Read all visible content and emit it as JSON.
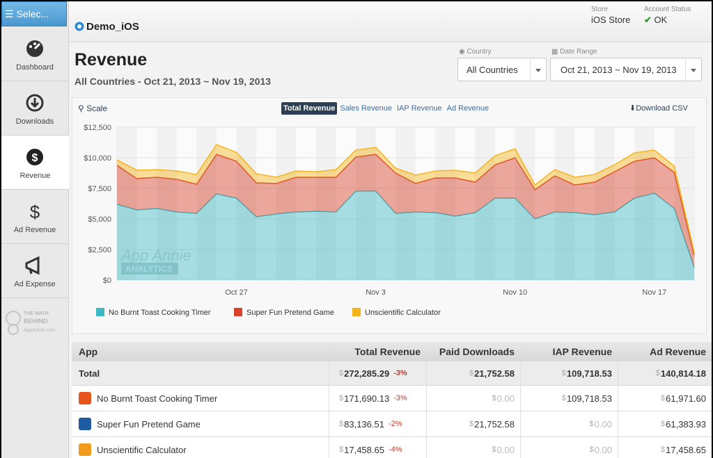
{
  "sidebar": {
    "menu_button": "Selec...",
    "items": [
      "Dashboard",
      "Downloads",
      "Revenue",
      "Ad Revenue",
      "Ad Expense"
    ],
    "logo": [
      "THE MATH",
      "BEHIND",
      "AppAnnie.com"
    ]
  },
  "header": {
    "app": "Demo_iOS",
    "store_label": "Store",
    "store": "iOS Store",
    "status_label": "Account Status",
    "status": "OK"
  },
  "page": {
    "title": "Revenue",
    "subtitle": "All Countries - Oct 21, 2013 ~ Nov 19, 2013"
  },
  "filters": {
    "country_label": "Country",
    "country": "All Countries",
    "date_label": "Date Range",
    "date": "Oct 21, 2013 ~ Nov 19, 2013"
  },
  "chart_controls": {
    "scale": "Scale",
    "tabs": [
      "Total Revenue",
      "Sales Revenue",
      "IAP Revenue",
      "Ad Revenue"
    ],
    "download": "Download CSV"
  },
  "chart_data": {
    "type": "area",
    "stacked": true,
    "categories": [
      null,
      null,
      null,
      null,
      null,
      null,
      "Oct 27",
      null,
      null,
      null,
      null,
      null,
      null,
      "Nov 3",
      null,
      null,
      null,
      null,
      null,
      null,
      "Nov 10",
      null,
      null,
      null,
      null,
      null,
      null,
      "Nov 17",
      null,
      null
    ],
    "series": [
      {
        "name": "No Burnt Toast Cooking Timer",
        "color": "#3db9c4",
        "values": [
          6190,
          5740,
          5850,
          5570,
          5450,
          7050,
          6700,
          5170,
          5400,
          5570,
          5620,
          5570,
          7270,
          7270,
          5450,
          5570,
          5510,
          5230,
          5510,
          6700,
          6700,
          5000,
          5570,
          5510,
          5340,
          5570,
          6700,
          7100,
          5850,
          1020
        ]
      },
      {
        "name": "Super Fun Pretend Game",
        "color": "#d9412b",
        "values": [
          3190,
          2560,
          2560,
          2670,
          2390,
          3230,
          3020,
          2780,
          2500,
          2840,
          2790,
          2840,
          2790,
          3010,
          3300,
          2330,
          2840,
          3120,
          2500,
          2730,
          3300,
          2390,
          2950,
          2270,
          2670,
          3290,
          3020,
          2900,
          2950,
          1030
        ]
      },
      {
        "name": "Unscientific Calculator",
        "color": "#f4b51c",
        "values": [
          450,
          680,
          620,
          680,
          800,
          800,
          730,
          740,
          510,
          510,
          450,
          620,
          570,
          570,
          400,
          680,
          570,
          630,
          740,
          740,
          740,
          390,
          510,
          630,
          630,
          570,
          680,
          630,
          520,
          220
        ]
      }
    ],
    "ylim": [
      0,
      12500
    ],
    "yticks": [
      {
        "value": 0,
        "label": "$0"
      },
      {
        "value": 2500,
        "label": "$2,500"
      },
      {
        "value": 5000,
        "label": "$5,000"
      },
      {
        "value": 7500,
        "label": "$7,500"
      },
      {
        "value": 10000,
        "label": "$10,000"
      },
      {
        "value": 12500,
        "label": "$12,500"
      }
    ],
    "grid": true,
    "annotations": [
      "App Annie",
      "ANALYTICS"
    ]
  },
  "table": {
    "columns": [
      "App",
      "Total Revenue",
      "Paid Downloads",
      "IAP Revenue",
      "Ad Revenue"
    ],
    "rows": [
      {
        "app": "Total",
        "cells": [
          {
            "prefix": "$",
            "amount": "272,285.29",
            "change": "-3%"
          },
          {
            "prefix": "$",
            "amount": "21,752.58"
          },
          {
            "prefix": "$",
            "amount": "109,718.53"
          },
          {
            "prefix": "$",
            "amount": "140,814.18"
          }
        ]
      },
      {
        "app": "No Burnt Toast Cooking Timer",
        "cells": [
          {
            "prefix": "$",
            "amount": "171,690.13",
            "change": "-3%"
          },
          {
            "prefix": "$",
            "amount": "0.00"
          },
          {
            "prefix": "$",
            "amount": "109,718.53"
          },
          {
            "prefix": "$",
            "amount": "61,971.60"
          }
        ]
      },
      {
        "app": "Super Fun Pretend Game",
        "cells": [
          {
            "prefix": "$",
            "amount": "83,136.51",
            "change": "-2%"
          },
          {
            "prefix": "$",
            "amount": "21,752.58"
          },
          {
            "prefix": "$",
            "amount": "0.00"
          },
          {
            "prefix": "$",
            "amount": "61,383.93"
          }
        ]
      },
      {
        "app": "Unscientific Calculator",
        "cells": [
          {
            "prefix": "$",
            "amount": "17,458.65",
            "change": "-4%"
          },
          {
            "prefix": "$",
            "amount": "0.00"
          },
          {
            "prefix": "$",
            "amount": "0.00"
          },
          {
            "prefix": "$",
            "amount": "17,458.65"
          }
        ]
      }
    ]
  }
}
